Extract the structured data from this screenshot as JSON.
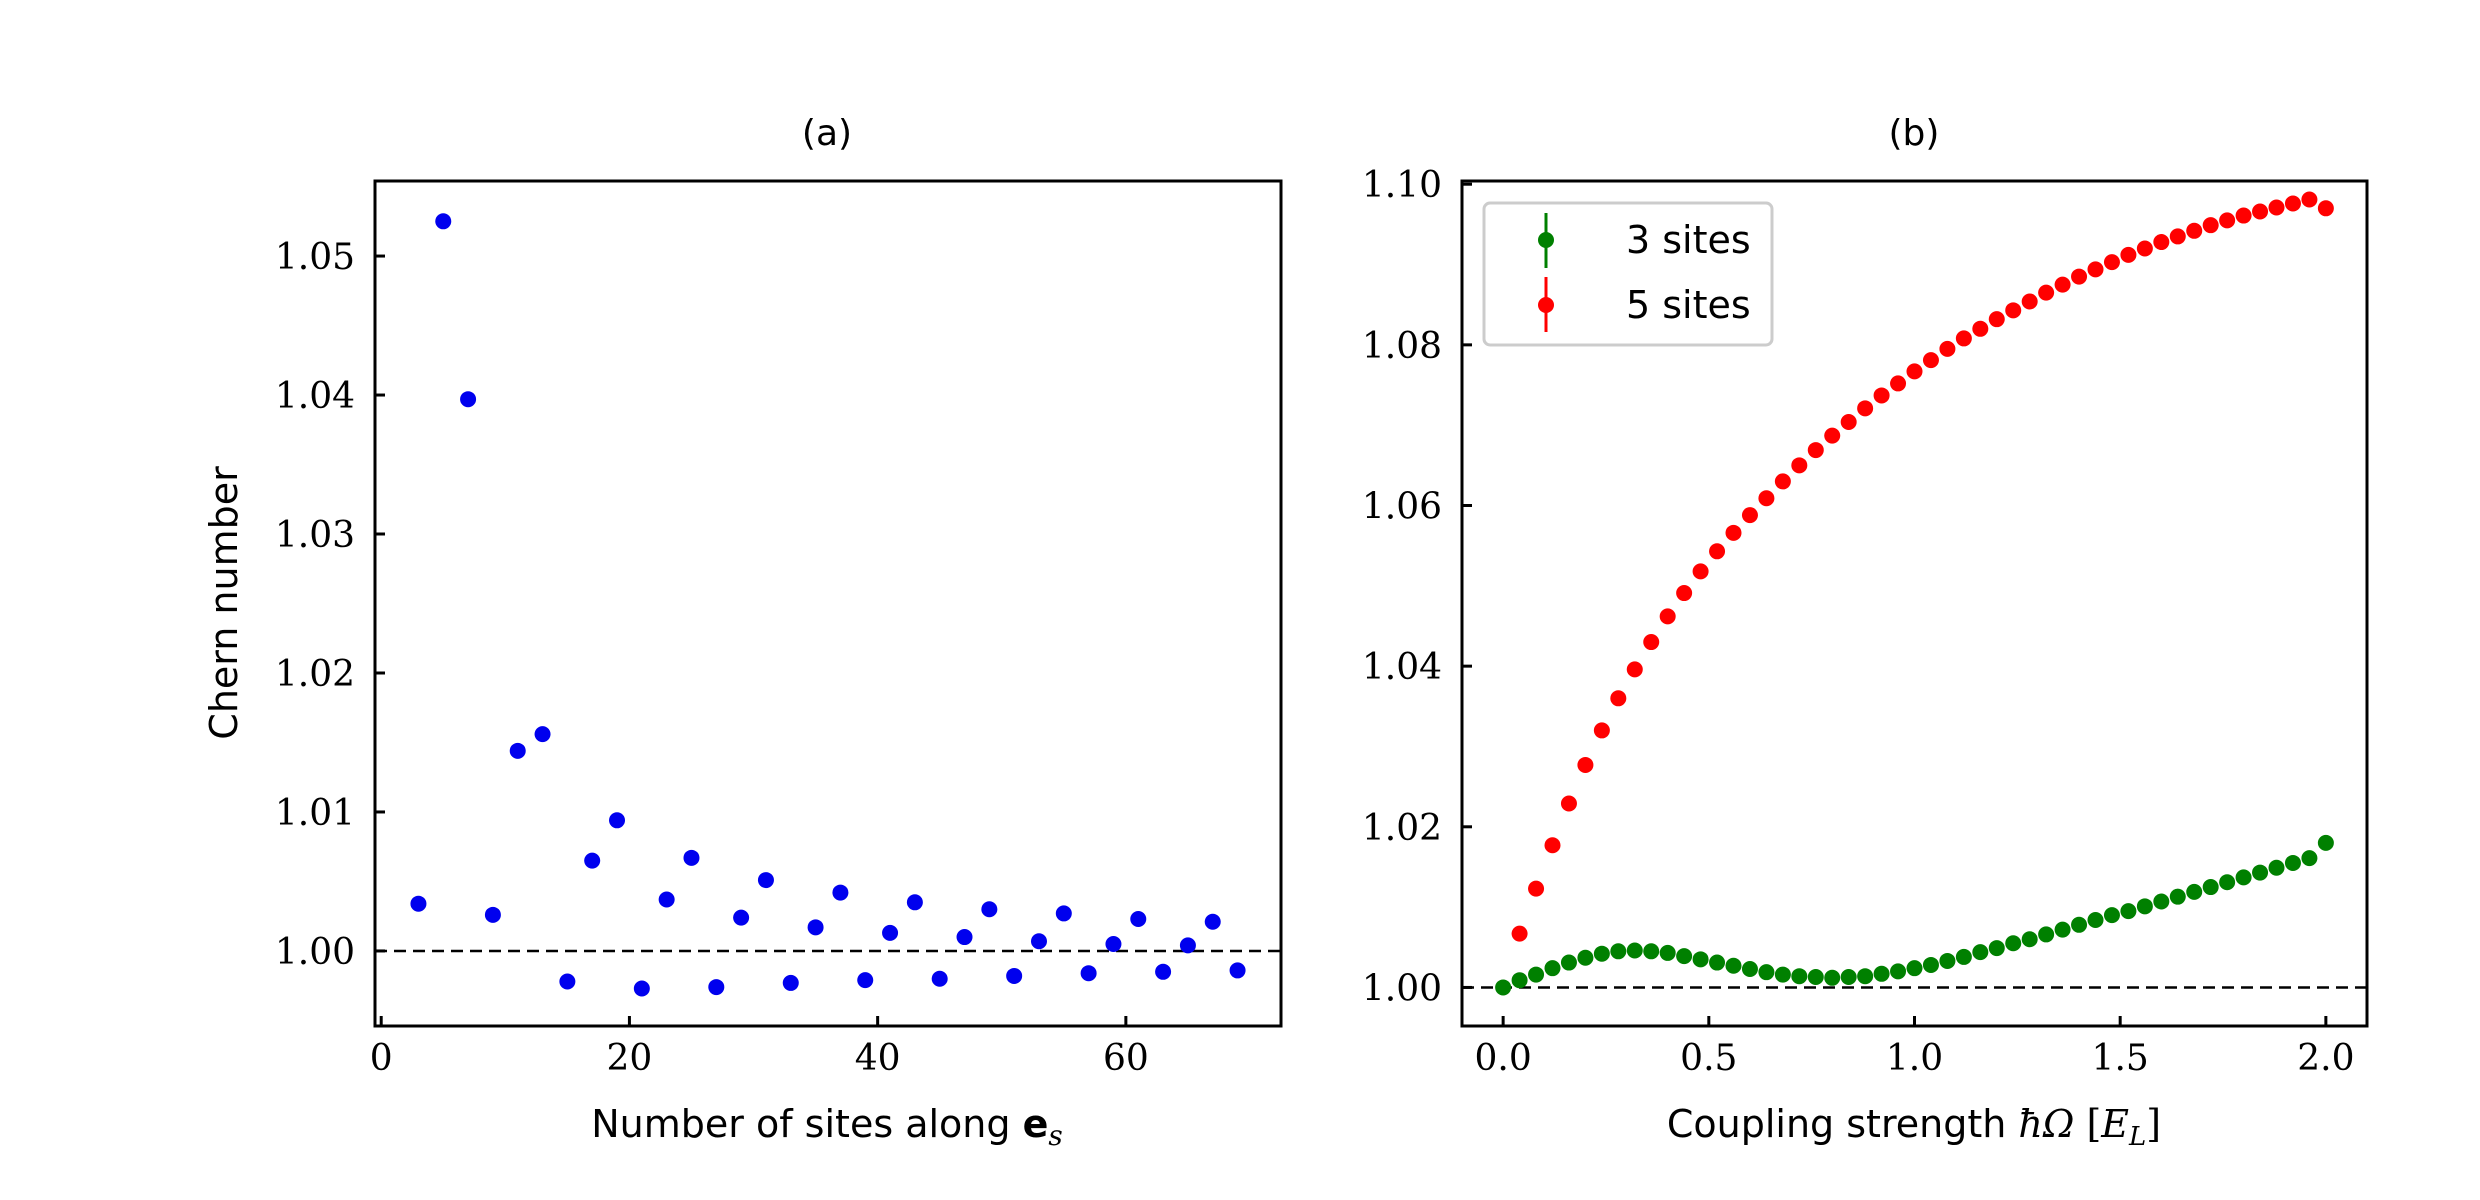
{
  "chart_data": [
    {
      "panel": "(a)",
      "type": "scatter",
      "xlabel": "Number of sites along e_s",
      "ylabel": "Chern number",
      "xlim": [
        -0.5,
        72.5
      ],
      "ylim": [
        0.9946,
        1.0554
      ],
      "xticks": [
        0,
        20,
        40,
        60
      ],
      "xtick_labels": [
        "0",
        "20",
        "40",
        "60"
      ],
      "yticks": [
        1.0,
        1.01,
        1.02,
        1.03,
        1.04,
        1.05
      ],
      "ytick_labels": [
        "1.00",
        "1.01",
        "1.02",
        "1.03",
        "1.04",
        "1.05"
      ],
      "reference_line": 1.0,
      "color": "#0000ee",
      "series": [
        {
          "x": [
            3,
            5,
            7,
            9,
            11,
            13,
            15,
            17,
            19,
            21,
            23,
            25,
            27,
            29,
            31,
            33,
            35,
            37,
            39,
            41,
            43,
            45,
            47,
            49,
            51,
            53,
            55,
            57,
            59,
            61,
            63,
            65,
            67,
            69
          ],
          "y": [
            1.0034,
            1.0525,
            1.0397,
            1.0026,
            1.0144,
            1.0156,
            0.9978,
            1.0065,
            1.0094,
            0.9973,
            1.0037,
            1.0067,
            0.9974,
            1.0024,
            1.0051,
            0.9977,
            1.0017,
            1.0042,
            0.9979,
            1.0013,
            1.0035,
            0.998,
            1.001,
            1.003,
            0.9982,
            1.0007,
            1.0027,
            0.9984,
            1.0005,
            1.0023,
            0.9985,
            1.0004,
            1.0021,
            0.9986
          ]
        }
      ]
    },
    {
      "panel": "(b)",
      "type": "scatter",
      "xlabel": "Coupling strength ħΩ [E_L]",
      "xlim": [
        -0.1,
        2.1
      ],
      "ylim": [
        0.9952,
        1.1004
      ],
      "xticks": [
        0.0,
        0.5,
        1.0,
        1.5,
        2.0
      ],
      "xtick_labels": [
        "0.0",
        "0.5",
        "1.0",
        "1.5",
        "2.0"
      ],
      "yticks": [
        1.0,
        1.02,
        1.04,
        1.06,
        1.08,
        1.1
      ],
      "ytick_labels": [
        "1.00",
        "1.02",
        "1.04",
        "1.06",
        "1.08",
        "1.10"
      ],
      "reference_line": 1.0,
      "legend_position": "top-left",
      "series": [
        {
          "name": "3 sites",
          "color": "#008000",
          "x": [
            0.0,
            0.04,
            0.08,
            0.12,
            0.16,
            0.2,
            0.24,
            0.28,
            0.32,
            0.36,
            0.4,
            0.44,
            0.48,
            0.52,
            0.56,
            0.6,
            0.64,
            0.68,
            0.72,
            0.76,
            0.8,
            0.84,
            0.88,
            0.92,
            0.96,
            1.0,
            1.04,
            1.08,
            1.12,
            1.16,
            1.2,
            1.24,
            1.28,
            1.32,
            1.36,
            1.4,
            1.44,
            1.48,
            1.52,
            1.56,
            1.6,
            1.64,
            1.68,
            1.72,
            1.76,
            1.8,
            1.84,
            1.88,
            1.92,
            1.96,
            2.0
          ],
          "y": [
            1.0,
            1.0009,
            1.0016,
            1.0024,
            1.0031,
            1.0037,
            1.0042,
            1.0045,
            1.0046,
            1.0045,
            1.0043,
            1.0039,
            1.0035,
            1.0031,
            1.0027,
            1.0023,
            1.0019,
            1.0016,
            1.0014,
            1.0013,
            1.0012,
            1.0013,
            1.0014,
            1.0017,
            1.002,
            1.0024,
            1.0028,
            1.0033,
            1.0038,
            1.0044,
            1.0049,
            1.0055,
            1.006,
            1.0066,
            1.0072,
            1.0078,
            1.0084,
            1.009,
            1.0095,
            1.0101,
            1.0107,
            1.0113,
            1.0119,
            1.0125,
            1.0131,
            1.0137,
            1.0143,
            1.0149,
            1.0155,
            1.0161,
            1.018
          ]
        },
        {
          "name": "5 sites",
          "color": "#ff0000",
          "x": [
            0.04,
            0.08,
            0.12,
            0.16,
            0.2,
            0.24,
            0.28,
            0.32,
            0.36,
            0.4,
            0.44,
            0.48,
            0.52,
            0.56,
            0.6,
            0.64,
            0.68,
            0.72,
            0.76,
            0.8,
            0.84,
            0.88,
            0.92,
            0.96,
            1.0,
            1.04,
            1.08,
            1.12,
            1.16,
            1.2,
            1.24,
            1.28,
            1.32,
            1.36,
            1.4,
            1.44,
            1.48,
            1.52,
            1.56,
            1.6,
            1.64,
            1.68,
            1.72,
            1.76,
            1.8,
            1.84,
            1.88,
            1.92,
            1.96,
            2.0
          ],
          "y": [
            1.0067,
            1.0123,
            1.0177,
            1.0229,
            1.0277,
            1.032,
            1.036,
            1.0396,
            1.043,
            1.0462,
            1.0491,
            1.0518,
            1.0543,
            1.0566,
            1.0588,
            1.0609,
            1.063,
            1.065,
            1.0669,
            1.0687,
            1.0704,
            1.0721,
            1.0737,
            1.0752,
            1.0767,
            1.0781,
            1.0795,
            1.0808,
            1.082,
            1.0832,
            1.0843,
            1.0854,
            1.0865,
            1.0875,
            1.0885,
            1.0894,
            1.0903,
            1.0912,
            1.092,
            1.0928,
            1.0935,
            1.0942,
            1.0949,
            1.0955,
            1.0961,
            1.0966,
            1.0971,
            1.0976,
            1.0981,
            1.097
          ]
        }
      ]
    }
  ]
}
